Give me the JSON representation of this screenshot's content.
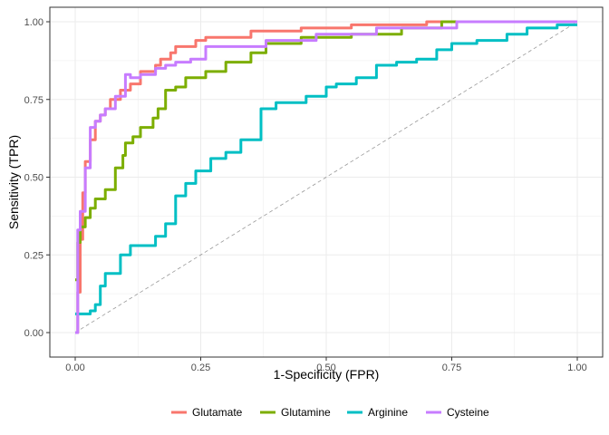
{
  "chart_data": {
    "type": "line",
    "title": "",
    "xlabel": "1-Specificity (FPR)",
    "ylabel": "Sensitivity (TPR)",
    "xlim": [
      0,
      1
    ],
    "ylim": [
      0,
      1
    ],
    "xticks": [
      0,
      0.25,
      0.5,
      0.75,
      1
    ],
    "yticks": [
      0,
      0.25,
      0.5,
      0.75,
      1
    ],
    "x_tick_labels": [
      "0.00",
      "0.25",
      "0.50",
      "0.75",
      "1.00"
    ],
    "y_tick_labels": [
      "0.00",
      "0.25",
      "0.50",
      "0.75",
      "1.00"
    ],
    "grid": true,
    "legend_position": "bottom",
    "reference_line": {
      "x": [
        0,
        1
      ],
      "y": [
        0,
        1
      ],
      "style": "dashed",
      "color": "#999999"
    },
    "series": [
      {
        "name": "Glutamate",
        "color": "#F8766D",
        "x": [
          0,
          0.005,
          0.005,
          0.01,
          0.01,
          0.015,
          0.015,
          0.02,
          0.02,
          0.03,
          0.03,
          0.04,
          0.04,
          0.05,
          0.05,
          0.06,
          0.06,
          0.07,
          0.07,
          0.09,
          0.09,
          0.11,
          0.11,
          0.13,
          0.13,
          0.16,
          0.16,
          0.17,
          0.17,
          0.19,
          0.19,
          0.2,
          0.2,
          0.24,
          0.24,
          0.26,
          0.26,
          0.35,
          0.35,
          0.45,
          0.45,
          0.55,
          0.55,
          0.7,
          0.7,
          1
        ],
        "y": [
          0,
          0,
          0.13,
          0.13,
          0.3,
          0.3,
          0.45,
          0.45,
          0.55,
          0.55,
          0.62,
          0.62,
          0.68,
          0.68,
          0.7,
          0.7,
          0.72,
          0.72,
          0.75,
          0.75,
          0.78,
          0.78,
          0.8,
          0.8,
          0.84,
          0.84,
          0.86,
          0.86,
          0.88,
          0.88,
          0.9,
          0.9,
          0.92,
          0.92,
          0.94,
          0.94,
          0.95,
          0.95,
          0.97,
          0.97,
          0.98,
          0.98,
          0.99,
          0.99,
          1,
          1
        ]
      },
      {
        "name": "Glutamine",
        "color": "#7CAE00",
        "x": [
          0,
          0.005,
          0.005,
          0.01,
          0.01,
          0.02,
          0.02,
          0.03,
          0.03,
          0.04,
          0.04,
          0.06,
          0.06,
          0.08,
          0.08,
          0.095,
          0.095,
          0.1,
          0.1,
          0.115,
          0.115,
          0.13,
          0.13,
          0.155,
          0.155,
          0.165,
          0.165,
          0.18,
          0.18,
          0.2,
          0.2,
          0.22,
          0.22,
          0.26,
          0.26,
          0.3,
          0.3,
          0.35,
          0.35,
          0.38,
          0.38,
          0.45,
          0.45,
          0.55,
          0.55,
          0.65,
          0.65,
          0.73,
          0.73,
          0.92
        ],
        "y": [
          0.17,
          0.17,
          0.29,
          0.29,
          0.34,
          0.34,
          0.37,
          0.37,
          0.4,
          0.4,
          0.43,
          0.43,
          0.46,
          0.46,
          0.53,
          0.53,
          0.57,
          0.57,
          0.61,
          0.61,
          0.63,
          0.63,
          0.66,
          0.66,
          0.69,
          0.69,
          0.72,
          0.72,
          0.78,
          0.78,
          0.79,
          0.79,
          0.82,
          0.82,
          0.84,
          0.84,
          0.87,
          0.87,
          0.9,
          0.9,
          0.93,
          0.93,
          0.95,
          0.95,
          0.96,
          0.96,
          0.98,
          0.98,
          1,
          1
        ]
      },
      {
        "name": "Arginine",
        "color": "#00BFC4",
        "x": [
          0,
          0.03,
          0.03,
          0.04,
          0.04,
          0.05,
          0.05,
          0.06,
          0.06,
          0.09,
          0.09,
          0.11,
          0.11,
          0.16,
          0.16,
          0.18,
          0.18,
          0.2,
          0.2,
          0.22,
          0.22,
          0.24,
          0.24,
          0.27,
          0.27,
          0.3,
          0.3,
          0.33,
          0.33,
          0.37,
          0.37,
          0.4,
          0.4,
          0.42,
          0.42,
          0.46,
          0.46,
          0.5,
          0.5,
          0.52,
          0.52,
          0.56,
          0.56,
          0.6,
          0.6,
          0.64,
          0.64,
          0.68,
          0.68,
          0.72,
          0.72,
          0.75,
          0.75,
          0.8,
          0.8,
          0.86,
          0.86,
          0.9,
          0.9,
          0.96,
          0.96,
          1
        ],
        "y": [
          0.06,
          0.06,
          0.07,
          0.07,
          0.09,
          0.09,
          0.15,
          0.15,
          0.19,
          0.19,
          0.25,
          0.25,
          0.28,
          0.28,
          0.31,
          0.31,
          0.35,
          0.35,
          0.44,
          0.44,
          0.48,
          0.48,
          0.52,
          0.52,
          0.56,
          0.56,
          0.58,
          0.58,
          0.62,
          0.62,
          0.72,
          0.72,
          0.74,
          0.74,
          0.74,
          0.74,
          0.76,
          0.76,
          0.79,
          0.79,
          0.8,
          0.8,
          0.82,
          0.82,
          0.86,
          0.86,
          0.87,
          0.87,
          0.88,
          0.88,
          0.91,
          0.91,
          0.93,
          0.93,
          0.94,
          0.94,
          0.96,
          0.96,
          0.98,
          0.98,
          0.99,
          0.99
        ]
      },
      {
        "name": "Cysteine",
        "color": "#C77CFF",
        "x": [
          0,
          0.005,
          0.005,
          0.01,
          0.01,
          0.02,
          0.02,
          0.03,
          0.03,
          0.04,
          0.04,
          0.05,
          0.05,
          0.06,
          0.06,
          0.08,
          0.08,
          0.1,
          0.1,
          0.11,
          0.11,
          0.13,
          0.13,
          0.16,
          0.16,
          0.18,
          0.18,
          0.2,
          0.2,
          0.23,
          0.23,
          0.26,
          0.26,
          0.38,
          0.38,
          0.48,
          0.48,
          0.6,
          0.6,
          0.76,
          0.76,
          1
        ],
        "y": [
          0,
          0,
          0.33,
          0.33,
          0.39,
          0.39,
          0.53,
          0.53,
          0.66,
          0.66,
          0.68,
          0.68,
          0.7,
          0.7,
          0.72,
          0.72,
          0.76,
          0.76,
          0.83,
          0.83,
          0.82,
          0.82,
          0.83,
          0.83,
          0.85,
          0.85,
          0.86,
          0.86,
          0.87,
          0.87,
          0.88,
          0.88,
          0.92,
          0.92,
          0.94,
          0.94,
          0.96,
          0.96,
          0.98,
          0.98,
          1,
          1
        ]
      }
    ]
  }
}
